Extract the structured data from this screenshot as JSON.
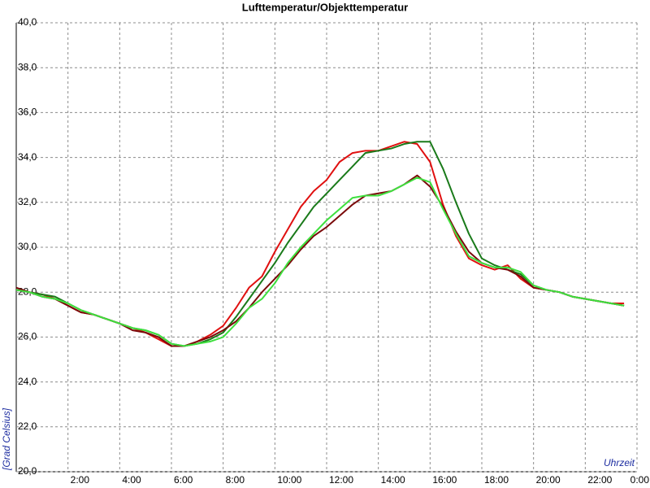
{
  "chart_data": {
    "type": "line",
    "title": "Lufttemperatur/Objekttemperatur",
    "x_label": "Uhrzeit",
    "y_label": "[Grad Celsius]",
    "x": [
      0,
      0.5,
      1,
      1.5,
      2,
      2.5,
      3,
      3.5,
      4,
      4.5,
      5,
      5.5,
      6,
      6.5,
      7,
      7.5,
      8,
      8.5,
      9,
      9.5,
      10,
      10.5,
      11,
      11.5,
      12,
      12.5,
      13,
      13.5,
      14,
      14.5,
      15,
      15.5,
      16,
      16.5,
      17,
      17.5,
      18,
      18.5,
      19,
      19.5,
      20,
      20.5,
      21,
      21.5,
      22,
      22.5,
      23,
      23.5
    ],
    "series": [
      {
        "color": "#e01010",
        "values": [
          28.1,
          28.0,
          27.9,
          27.7,
          27.4,
          27.1,
          27.0,
          26.8,
          26.6,
          26.4,
          26.2,
          25.9,
          25.6,
          25.6,
          25.8,
          26.1,
          26.5,
          27.3,
          28.2,
          28.7,
          29.8,
          30.8,
          31.8,
          32.5,
          33.0,
          33.8,
          34.2,
          34.3,
          34.3,
          34.5,
          34.7,
          34.6,
          33.8,
          31.9,
          30.5,
          29.5,
          29.2,
          29.0,
          29.2,
          28.6,
          28.2,
          28.1,
          28.0,
          27.8,
          27.7,
          27.6,
          27.5,
          27.5
        ]
      },
      {
        "color": "#1a7a1a",
        "values": [
          28.1,
          28.0,
          27.9,
          27.8,
          27.5,
          27.2,
          27.0,
          26.8,
          26.6,
          26.4,
          26.3,
          26.1,
          25.7,
          25.6,
          25.7,
          25.9,
          26.2,
          26.9,
          27.7,
          28.5,
          29.3,
          30.2,
          31.0,
          31.8,
          32.4,
          33.0,
          33.6,
          34.2,
          34.3,
          34.4,
          34.6,
          34.7,
          34.7,
          33.5,
          32.0,
          30.6,
          29.5,
          29.2,
          29.0,
          28.8,
          28.3,
          28.1,
          28.0,
          27.8,
          27.7,
          27.6,
          27.5,
          27.4
        ]
      },
      {
        "color": "#7a0a0a",
        "values": [
          28.2,
          28.0,
          27.8,
          27.7,
          27.4,
          27.1,
          27.0,
          26.8,
          26.6,
          26.3,
          26.2,
          26.0,
          25.6,
          25.6,
          25.8,
          26.0,
          26.3,
          26.7,
          27.3,
          28.0,
          28.6,
          29.2,
          29.9,
          30.5,
          30.9,
          31.4,
          31.9,
          32.3,
          32.4,
          32.5,
          32.8,
          33.2,
          32.7,
          31.8,
          30.7,
          29.8,
          29.3,
          29.1,
          29.0,
          28.7,
          28.2,
          28.1,
          28.0,
          27.8,
          27.7,
          27.6,
          27.5,
          27.4
        ]
      },
      {
        "color": "#3ee03e",
        "values": [
          28.1,
          28.0,
          27.8,
          27.7,
          27.5,
          27.2,
          27.0,
          26.8,
          26.6,
          26.4,
          26.3,
          26.1,
          25.7,
          25.6,
          25.7,
          25.8,
          26.0,
          26.6,
          27.3,
          27.7,
          28.4,
          29.3,
          30.0,
          30.6,
          31.2,
          31.7,
          32.2,
          32.3,
          32.3,
          32.5,
          32.8,
          33.1,
          32.9,
          31.7,
          30.6,
          29.6,
          29.3,
          29.1,
          29.1,
          28.9,
          28.3,
          28.1,
          28.0,
          27.8,
          27.7,
          27.6,
          27.5,
          27.4
        ]
      }
    ],
    "xlim": [
      0,
      24
    ],
    "xticks": [
      {
        "value": 2,
        "label": "2:00"
      },
      {
        "value": 4,
        "label": "4:00"
      },
      {
        "value": 6,
        "label": "6:00"
      },
      {
        "value": 8,
        "label": "8:00"
      },
      {
        "value": 10,
        "label": "10:00"
      },
      {
        "value": 12,
        "label": "12:00"
      },
      {
        "value": 14,
        "label": "14:00"
      },
      {
        "value": 16,
        "label": "16:00"
      },
      {
        "value": 18,
        "label": "18:00"
      },
      {
        "value": 20,
        "label": "20:00"
      },
      {
        "value": 22,
        "label": "22:00"
      },
      {
        "value": 24,
        "label": "0:00"
      }
    ],
    "ylim": [
      20,
      40
    ],
    "yticks": [
      {
        "value": 20,
        "label": "20,0"
      },
      {
        "value": 22,
        "label": "22,0"
      },
      {
        "value": 24,
        "label": "24,0"
      },
      {
        "value": 26,
        "label": "26,0"
      },
      {
        "value": 28,
        "label": "28,0"
      },
      {
        "value": 30,
        "label": "30,0"
      },
      {
        "value": 32,
        "label": "32,0"
      },
      {
        "value": 34,
        "label": "34,0"
      },
      {
        "value": 36,
        "label": "36,0"
      },
      {
        "value": 38,
        "label": "38,0"
      },
      {
        "value": 40,
        "label": "40,0"
      }
    ],
    "grid": true
  }
}
